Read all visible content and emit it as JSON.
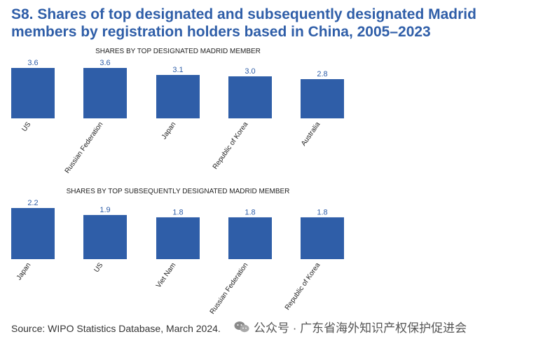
{
  "title": "S8. Shares of top designated and subsequently designated Madrid members by registration holders based in China, 2005–2023",
  "source": "Source: WIPO Statistics Database, March 2024.",
  "watermark": "公众号 · 广东省海外知识产权保护促进会",
  "colors": {
    "bar": "#2f5ea8",
    "title": "#2f5ea8",
    "value_label": "#2f5ea8"
  },
  "chart_data": [
    {
      "type": "bar",
      "title": "SHARES BY TOP DESIGNATED MADRID MEMBER",
      "categories": [
        "US",
        "Russian Federation",
        "Japan",
        "Republic of Korea",
        "Australia"
      ],
      "values": [
        3.6,
        3.6,
        3.1,
        3.0,
        2.8
      ],
      "value_labels": [
        "3.6",
        "3.6",
        "3.1",
        "3.0",
        "2.8"
      ],
      "xlabel": "",
      "ylabel": "",
      "ylim": [
        0,
        3.6
      ],
      "grid": false
    },
    {
      "type": "bar",
      "title": "SHARES BY TOP SUBSEQUENTLY DESIGNATED MADRID MEMBER",
      "categories": [
        "Japan",
        "US",
        "Viet Nam",
        "Russian Federation",
        "Republic of Korea"
      ],
      "values": [
        2.2,
        1.9,
        1.8,
        1.8,
        1.8
      ],
      "value_labels": [
        "2.2",
        "1.9",
        "1.8",
        "1.8",
        "1.8"
      ],
      "xlabel": "",
      "ylabel": "",
      "ylim": [
        0,
        2.2
      ],
      "grid": false
    }
  ]
}
